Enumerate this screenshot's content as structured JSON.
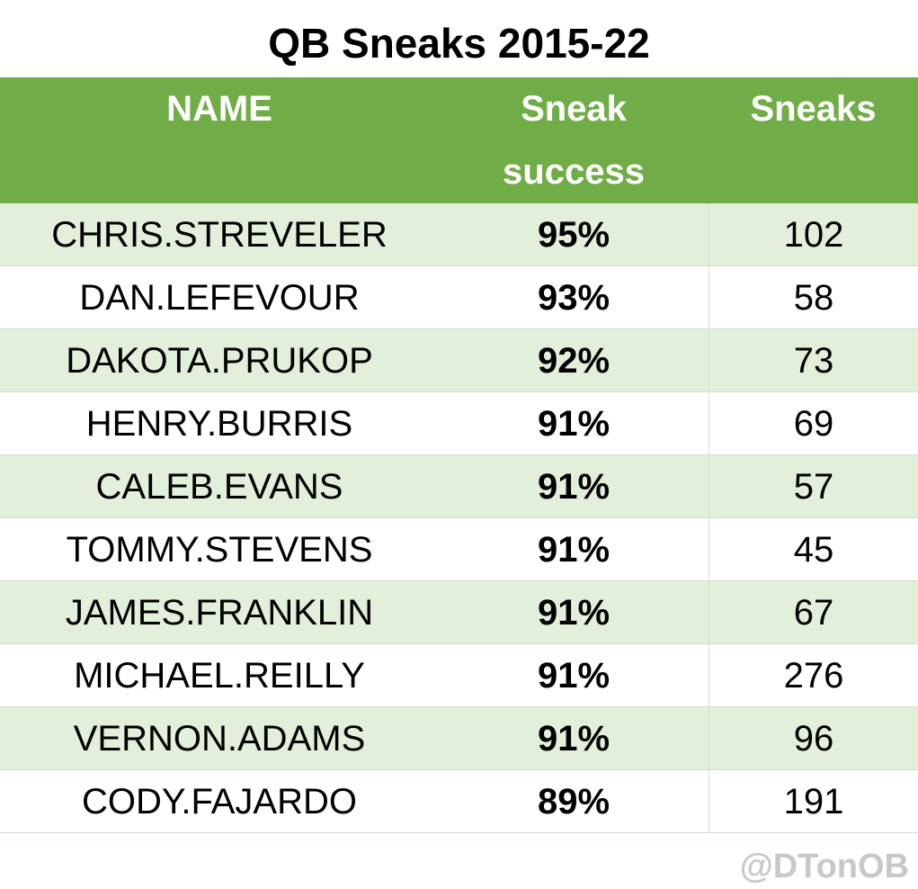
{
  "title": "QB Sneaks 2015-22",
  "table": {
    "header": [
      "NAME",
      "Sneak success",
      "Sneaks"
    ],
    "rows": [
      [
        "CHRIS.STREVELER",
        "95%",
        "102"
      ],
      [
        "DAN.LEFEVOUR",
        "93%",
        "58"
      ],
      [
        "DAKOTA.PRUKOP",
        "92%",
        "73"
      ],
      [
        "HENRY.BURRIS",
        "91%",
        "69"
      ],
      [
        "CALEB.EVANS",
        "91%",
        "57"
      ],
      [
        "TOMMY.STEVENS",
        "91%",
        "45"
      ],
      [
        "JAMES.FRANKLIN",
        "91%",
        "67"
      ],
      [
        "MICHAEL.REILLY",
        "91%",
        "276"
      ],
      [
        "VERNON.ADAMS",
        "91%",
        "96"
      ],
      [
        "CODY.FAJARDO",
        "89%",
        "191"
      ]
    ]
  },
  "watermark": "@DTonOB"
}
